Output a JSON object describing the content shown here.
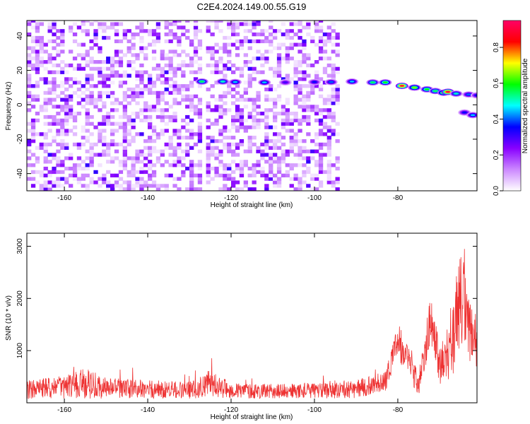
{
  "figure_title": "C2E4.2024.149.00.55.G19",
  "chart_data": [
    {
      "type": "heatmap",
      "xlabel": "Height of straight line (km)",
      "ylabel": "Frequency (Hz)",
      "xlim": [
        -169,
        -61
      ],
      "ylim": [
        -50,
        49
      ],
      "xticks": [
        -160,
        -140,
        -120,
        -100,
        -80
      ],
      "xtick_labels": [
        "-160",
        "-140",
        "-120",
        "-100",
        "-80"
      ],
      "yticks": [
        -40,
        -20,
        0,
        20,
        40
      ],
      "ytick_labels": [
        "-40",
        "-20",
        "0",
        "20",
        "40"
      ],
      "colorbar": {
        "label": "Normalized spectral amplitude",
        "range": [
          0,
          0.95
        ],
        "ticks": [
          0.0,
          0.2,
          0.4,
          0.6,
          0.8
        ],
        "tick_labels": [
          "0.0",
          "0.2",
          "0.4",
          "0.6",
          "0.8"
        ],
        "colors": [
          "#ffffff",
          "#cc88ff",
          "#8800ff",
          "#0000ff",
          "#00ffff",
          "#00ff00",
          "#ffff00",
          "#ff0000",
          "#ff0066"
        ]
      },
      "noise_gap": [
        -128,
        -126
      ],
      "noise_end": -94,
      "signal_track": [
        {
          "x": -127,
          "y": 13.5,
          "amp": 0.55
        },
        {
          "x": -122,
          "y": 13.5,
          "amp": 0.5
        },
        {
          "x": -119,
          "y": 13.2,
          "amp": 0.45
        },
        {
          "x": -112,
          "y": 13.0,
          "amp": 0.45
        },
        {
          "x": -107,
          "y": 13.0,
          "amp": 0.3
        },
        {
          "x": -100,
          "y": 13.2,
          "amp": 0.35
        },
        {
          "x": -96,
          "y": 13.2,
          "amp": 0.4
        },
        {
          "x": -91,
          "y": 13.5,
          "amp": 0.45
        },
        {
          "x": -86,
          "y": 13.0,
          "amp": 0.55
        },
        {
          "x": -83,
          "y": 13.0,
          "amp": 0.6
        },
        {
          "x": -79,
          "y": 11.0,
          "amp": 0.9
        },
        {
          "x": -76,
          "y": 10.0,
          "amp": 0.65
        },
        {
          "x": -73,
          "y": 9.0,
          "amp": 0.6
        },
        {
          "x": -71,
          "y": 8.0,
          "amp": 0.55
        },
        {
          "x": -69,
          "y": 7.0,
          "amp": 0.65
        },
        {
          "x": -68,
          "y": 7.5,
          "amp": 0.92
        },
        {
          "x": -66,
          "y": 6.5,
          "amp": 0.5
        },
        {
          "x": -63,
          "y": 6.0,
          "amp": 0.4
        },
        {
          "x": -61,
          "y": 5.5,
          "amp": 0.35
        }
      ],
      "secondary_track": [
        {
          "x": -64,
          "y": -4.5,
          "amp": 0.35
        },
        {
          "x": -62,
          "y": -6.0,
          "amp": 0.45
        }
      ]
    },
    {
      "type": "line",
      "xlabel": "Height of straight line (km)",
      "ylabel": "SNR (10 * v/v)",
      "xlim": [
        -169,
        -61
      ],
      "ylim": [
        0,
        3250
      ],
      "xticks": [
        -160,
        -140,
        -120,
        -100,
        -80
      ],
      "xtick_labels": [
        "-160",
        "-140",
        "-120",
        "-100",
        "-80"
      ],
      "yticks": [
        1000,
        2000,
        3000
      ],
      "ytick_labels": [
        "1000",
        "2000",
        "3000"
      ],
      "color": "#ee3333",
      "envelope": [
        {
          "x": -169,
          "base": 250,
          "amp": 180
        },
        {
          "x": -160,
          "base": 300,
          "amp": 220
        },
        {
          "x": -155,
          "base": 380,
          "amp": 300
        },
        {
          "x": -150,
          "base": 280,
          "amp": 200
        },
        {
          "x": -140,
          "base": 260,
          "amp": 180
        },
        {
          "x": -130,
          "base": 240,
          "amp": 170
        },
        {
          "x": -125,
          "base": 380,
          "amp": 260
        },
        {
          "x": -120,
          "base": 230,
          "amp": 150
        },
        {
          "x": -110,
          "base": 220,
          "amp": 140
        },
        {
          "x": -100,
          "base": 240,
          "amp": 150
        },
        {
          "x": -90,
          "base": 260,
          "amp": 180
        },
        {
          "x": -83,
          "base": 420,
          "amp": 200
        },
        {
          "x": -80,
          "base": 1200,
          "amp": 350
        },
        {
          "x": -77,
          "base": 700,
          "amp": 300
        },
        {
          "x": -75,
          "base": 380,
          "amp": 250
        },
        {
          "x": -72,
          "base": 1650,
          "amp": 500
        },
        {
          "x": -70,
          "base": 700,
          "amp": 400
        },
        {
          "x": -68,
          "base": 1000,
          "amp": 600
        },
        {
          "x": -66,
          "base": 1500,
          "amp": 900
        },
        {
          "x": -65,
          "base": 2200,
          "amp": 1000
        },
        {
          "x": -63,
          "base": 1300,
          "amp": 700
        },
        {
          "x": -61,
          "base": 1100,
          "amp": 650
        }
      ]
    }
  ]
}
